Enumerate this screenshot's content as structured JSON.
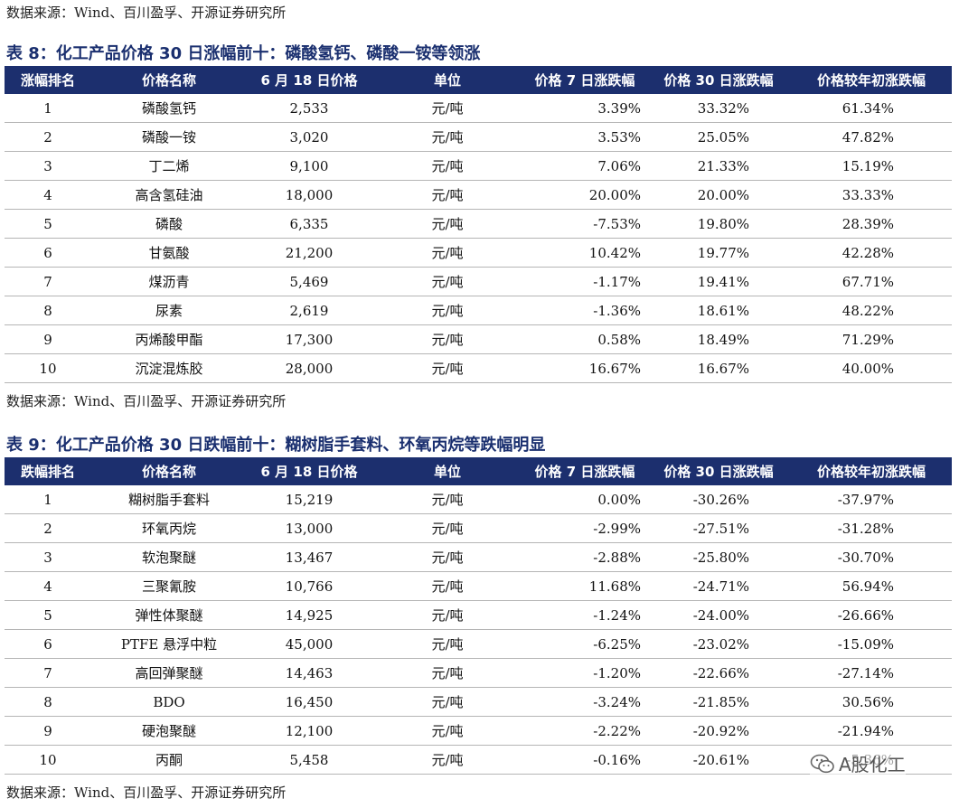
{
  "top_source": "数据来源：Wind、百川盈孚、开源证券研究所",
  "table8": {
    "caption": "表 8：化工产品价格 30 日涨幅前十：磷酸氢钙、磷酸一铵等领涨",
    "headers": [
      "涨幅排名",
      "价格名称",
      "6 月 18 日价格",
      "单位",
      "价格 7 日涨跌幅",
      "价格 30 日涨跌幅",
      "价格较年初涨跌幅"
    ],
    "rows": [
      [
        "1",
        "磷酸氢钙",
        "2,533",
        "元/吨",
        "3.39%",
        "33.32%",
        "61.34%"
      ],
      [
        "2",
        "磷酸一铵",
        "3,020",
        "元/吨",
        "3.53%",
        "25.05%",
        "47.82%"
      ],
      [
        "3",
        "丁二烯",
        "9,100",
        "元/吨",
        "7.06%",
        "21.33%",
        "15.19%"
      ],
      [
        "4",
        "高含氢硅油",
        "18,000",
        "元/吨",
        "20.00%",
        "20.00%",
        "33.33%"
      ],
      [
        "5",
        "磷酸",
        "6,335",
        "元/吨",
        "-7.53%",
        "19.80%",
        "28.39%"
      ],
      [
        "6",
        "甘氨酸",
        "21,200",
        "元/吨",
        "10.42%",
        "19.77%",
        "42.28%"
      ],
      [
        "7",
        "煤沥青",
        "5,469",
        "元/吨",
        "-1.17%",
        "19.41%",
        "67.71%"
      ],
      [
        "8",
        "尿素",
        "2,619",
        "元/吨",
        "-1.36%",
        "18.61%",
        "48.22%"
      ],
      [
        "9",
        "丙烯酸甲酯",
        "17,300",
        "元/吨",
        "0.58%",
        "18.49%",
        "71.29%"
      ],
      [
        "10",
        "沉淀混炼胶",
        "28,000",
        "元/吨",
        "16.67%",
        "16.67%",
        "40.00%"
      ]
    ],
    "source": "数据来源：Wind、百川盈孚、开源证券研究所"
  },
  "table9": {
    "caption": "表 9：化工产品价格 30 日跌幅前十：糊树脂手套料、环氧丙烷等跌幅明显",
    "headers": [
      "跌幅排名",
      "价格名称",
      "6 月 18 日价格",
      "单位",
      "价格 7 日涨跌幅",
      "价格 30 日涨跌幅",
      "价格较年初涨跌幅"
    ],
    "rows": [
      [
        "1",
        "糊树脂手套料",
        "15,219",
        "元/吨",
        "0.00%",
        "-30.26%",
        "-37.97%"
      ],
      [
        "2",
        "环氧丙烷",
        "13,000",
        "元/吨",
        "-2.99%",
        "-27.51%",
        "-31.28%"
      ],
      [
        "3",
        "软泡聚醚",
        "13,467",
        "元/吨",
        "-2.88%",
        "-25.80%",
        "-30.70%"
      ],
      [
        "4",
        "三聚氰胺",
        "10,766",
        "元/吨",
        "11.68%",
        "-24.71%",
        "56.94%"
      ],
      [
        "5",
        "弹性体聚醚",
        "14,925",
        "元/吨",
        "-1.24%",
        "-24.00%",
        "-26.66%"
      ],
      [
        "6",
        "PTFE 悬浮中粒",
        "45,000",
        "元/吨",
        "-6.25%",
        "-23.02%",
        "-15.09%"
      ],
      [
        "7",
        "高回弹聚醚",
        "14,463",
        "元/吨",
        "-1.20%",
        "-22.66%",
        "-27.14%"
      ],
      [
        "8",
        "BDO",
        "16,450",
        "元/吨",
        "-3.24%",
        "-21.85%",
        "30.56%"
      ],
      [
        "9",
        "硬泡聚醚",
        "12,100",
        "元/吨",
        "-2.22%",
        "-20.92%",
        "-21.94%"
      ],
      [
        "10",
        "丙酮",
        "5,458",
        "元/吨",
        "-0.16%",
        "-20.61%",
        "-5.36%"
      ]
    ],
    "source": "数据来源：Wind、百川盈孚、开源证券研究所"
  },
  "watermark": {
    "text": "A股化工",
    "icon": "wechat-icon"
  }
}
